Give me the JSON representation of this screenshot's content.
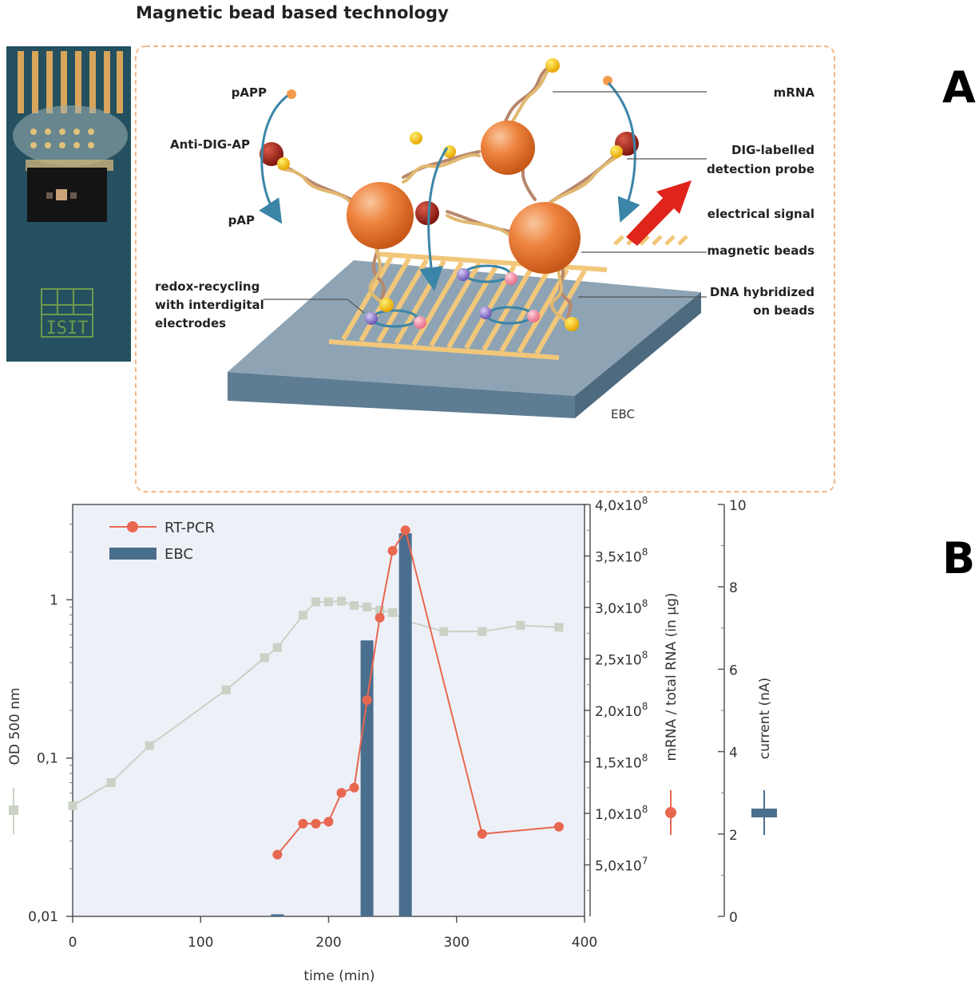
{
  "title": "Magnetic bead based technology",
  "panel_letters": {
    "a": "A",
    "b": "B"
  },
  "chip_logo": "ISIT",
  "diagram_labels": {
    "papp": "pAPP",
    "anti_dig_ap": "Anti-DIG-AP",
    "pap": "pAP",
    "redox_1": "redox-recycling",
    "redox_2": "with interdigital",
    "redox_3": "electrodes",
    "mrna": "mRNA",
    "dig_1": "DIG-labelled",
    "dig_2": "detection probe",
    "electrical_signal": "electrical signal",
    "magnetic_beads": "magnetic beads",
    "dna_1": "DNA hybridized",
    "dna_2": "on beads",
    "ebc": "EBC"
  },
  "colors": {
    "bead": "#e8722f",
    "bead_highlight": "#f7b27e",
    "ap_ball": "#b02418",
    "yellow_ball": "#f5c400",
    "chip_top": "#8ea4b4",
    "chip_side": "#5e7d93",
    "electrode": "#f2c77a",
    "arrow_blue": "#3b85a8",
    "signal_red": "#e0241b",
    "frame_dash": "#f2b98a",
    "plot_bg": "#eef0f8",
    "od_series": "#c9d2c4",
    "rtpcr_series": "#e8674f",
    "ebc_bar": "#4a6e8e"
  },
  "chart_data": {
    "type": "bar",
    "xlabel": "time (min)",
    "xlim": [
      0,
      400
    ],
    "x_ticks": [
      "0",
      "100",
      "200",
      "300",
      "400"
    ],
    "y_left": {
      "label": "OD 500 nm",
      "scale": "log",
      "ylim": [
        0.01,
        4
      ],
      "ticks": [
        "0,01",
        "0,1",
        "1"
      ]
    },
    "y_mid": {
      "label": "mRNA / total RNA (in µg)",
      "ylim": [
        0,
        400000000
      ],
      "ticks": [
        "5,0x10",
        "1,0x10",
        "1,5x10",
        "2,0x10",
        "2,5x10",
        "3,0x10",
        "3,5x10",
        "4,0x10"
      ],
      "tick_exponents": [
        "7",
        "8",
        "8",
        "8",
        "8",
        "8",
        "8",
        "8"
      ]
    },
    "y_right": {
      "label": "current (nA)",
      "ylim": [
        0,
        10
      ],
      "ticks": [
        "0",
        "2",
        "4",
        "6",
        "8",
        "10"
      ]
    },
    "legend_placement": "top-left",
    "series": [
      {
        "name": "RT-PCR",
        "kind": "line",
        "axis": "y_mid",
        "x": [
          160,
          180,
          190,
          200,
          210,
          220,
          230,
          240,
          250,
          260,
          320,
          380
        ],
        "y": [
          60000000,
          90000000,
          90000000,
          92000000,
          120000000,
          125000000,
          210000000,
          290000000,
          355000000,
          375000000,
          80000000,
          87000000
        ]
      },
      {
        "name": "EBC",
        "kind": "bar",
        "axis": "y_right",
        "x": [
          160,
          230,
          260
        ],
        "y": [
          0.05,
          6.7,
          9.3
        ]
      },
      {
        "name": "",
        "kind": "line",
        "axis": "y_left",
        "x": [
          0,
          30,
          60,
          120,
          150,
          160,
          180,
          190,
          200,
          210,
          220,
          230,
          240,
          250,
          260,
          290,
          320,
          350,
          380
        ],
        "y": [
          0.05,
          0.07,
          0.12,
          0.27,
          0.43,
          0.5,
          0.8,
          0.97,
          0.97,
          0.98,
          0.92,
          0.9,
          0.86,
          0.83,
          0.74,
          0.63,
          0.63,
          0.69,
          0.67
        ]
      }
    ]
  }
}
